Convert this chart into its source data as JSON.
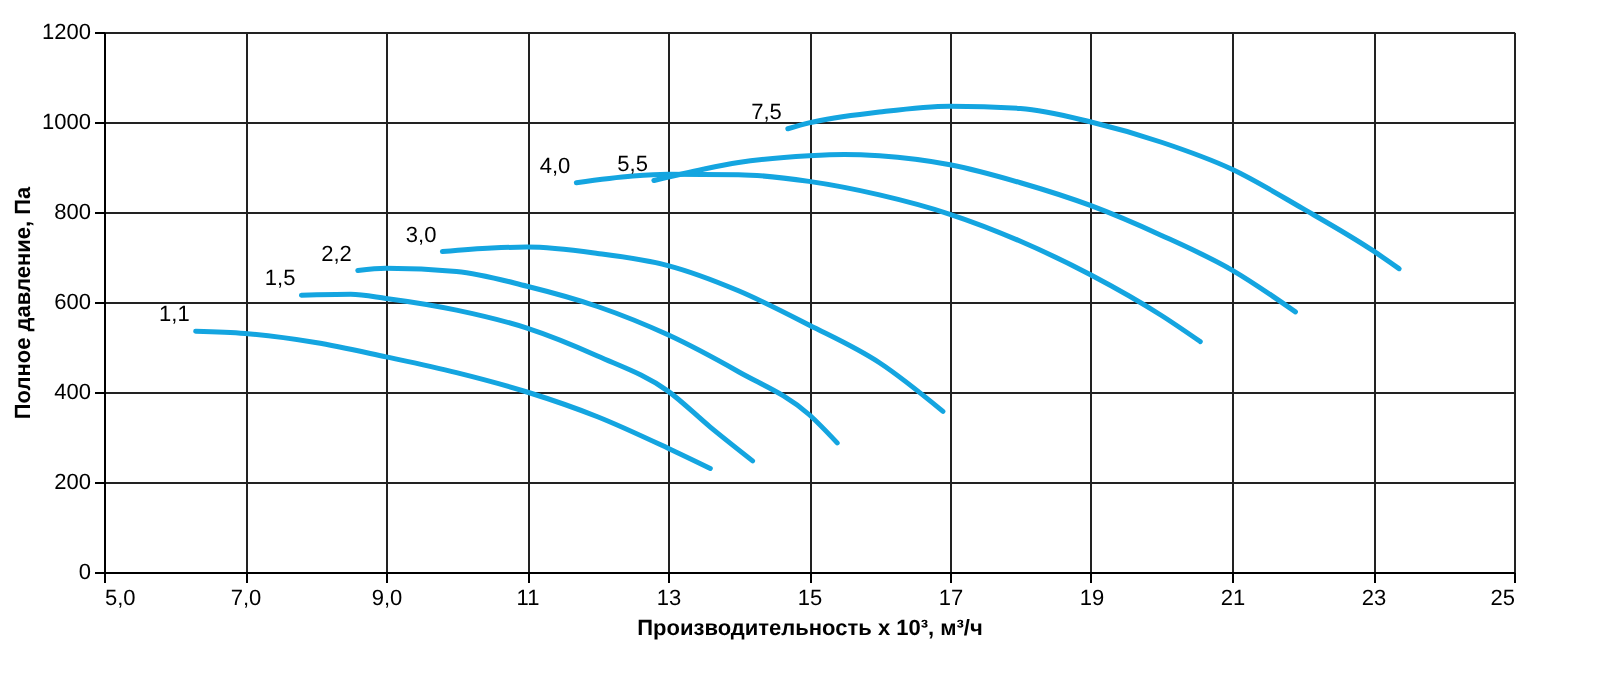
{
  "chart_data": {
    "type": "line",
    "xlabel": "Производительность x 10³, м³/ч",
    "ylabel": "Полное давление, Па",
    "xlim": [
      5,
      25
    ],
    "xticks": [
      {
        "value": 5,
        "label": "5,0"
      },
      {
        "value": 7,
        "label": "7,0"
      },
      {
        "value": 9,
        "label": "9,0"
      },
      11,
      13,
      15,
      17,
      19,
      21,
      23,
      25
    ],
    "ylim": [
      0,
      1200
    ],
    "yticks": [
      0,
      200,
      400,
      600,
      800,
      1000,
      1200
    ],
    "grid": true,
    "legend": false,
    "marker": "none",
    "line_style": "solid",
    "series": [
      {
        "name": "1,1",
        "color": "#14a5e0",
        "x": [
          6.3,
          7,
          8,
          9,
          10,
          11,
          12,
          13,
          13.6
        ],
        "values": [
          535,
          530,
          510,
          478,
          443,
          400,
          345,
          275,
          230
        ]
      },
      {
        "name": "1,5",
        "color": "#14a5e0",
        "x": [
          7.8,
          8.5,
          9,
          10,
          11,
          12,
          13,
          13.6,
          14.2
        ],
        "values": [
          615,
          617,
          608,
          582,
          542,
          480,
          402,
          322,
          247
        ]
      },
      {
        "name": "2,2",
        "color": "#14a5e0",
        "x": [
          8.6,
          9,
          10,
          11,
          12,
          13,
          14,
          15,
          15.4
        ],
        "values": [
          670,
          675,
          668,
          635,
          590,
          527,
          445,
          350,
          287
        ]
      },
      {
        "name": "3,0",
        "color": "#14a5e0",
        "x": [
          9.8,
          10.5,
          11,
          12,
          13,
          14,
          15,
          16,
          16.9
        ],
        "values": [
          712,
          720,
          722,
          708,
          681,
          625,
          549,
          465,
          357
        ]
      },
      {
        "name": "4,0",
        "color": "#14a5e0",
        "x": [
          11.7,
          12.5,
          13,
          14,
          15,
          16,
          17,
          18,
          19,
          20,
          20.55
        ],
        "values": [
          865,
          880,
          884,
          883,
          868,
          838,
          795,
          735,
          660,
          570,
          512
        ]
      },
      {
        "name": "5,5",
        "color": "#14a5e0",
        "x": [
          12.8,
          13.5,
          14,
          15,
          15.5,
          16,
          17,
          18,
          19,
          20,
          21,
          21.9
        ],
        "values": [
          870,
          895,
          910,
          925,
          928,
          925,
          905,
          865,
          814,
          748,
          671,
          578
        ]
      },
      {
        "name": "7,5",
        "color": "#14a5e0",
        "x": [
          14.7,
          15,
          16,
          17,
          18,
          19,
          20,
          21,
          22,
          23,
          23.37
        ],
        "values": [
          985,
          998,
          1022,
          1035,
          1030,
          1000,
          955,
          895,
          808,
          714,
          674
        ]
      }
    ]
  }
}
